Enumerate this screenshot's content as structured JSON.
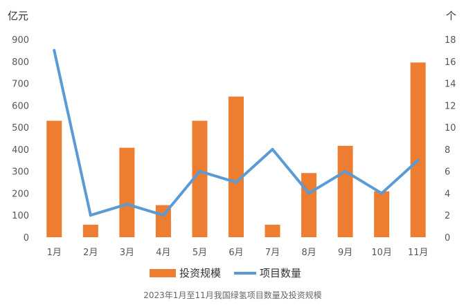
{
  "chart_data": {
    "type": "bar",
    "categories": [
      "1月",
      "2月",
      "3月",
      "4月",
      "5月",
      "6月",
      "7月",
      "8月",
      "9月",
      "10月",
      "11月"
    ],
    "series": [
      {
        "name": "投资规模",
        "kind": "bar",
        "axis": "left",
        "values": [
          530,
          57,
          407,
          146,
          530,
          640,
          57,
          292,
          416,
          209,
          795
        ],
        "color": "#ED7D31"
      },
      {
        "name": "项目数量",
        "kind": "line",
        "axis": "right",
        "values": [
          17,
          2,
          3,
          2,
          6,
          5,
          8,
          4,
          6,
          4,
          7
        ],
        "color": "#5B9BD5"
      }
    ],
    "y_left": {
      "label": "亿元",
      "ylim": [
        0,
        900
      ],
      "ticks": [
        "0",
        "100",
        "200",
        "300",
        "400",
        "500",
        "600",
        "700",
        "800",
        "900"
      ]
    },
    "y_right": {
      "label": "个",
      "ylim": [
        0,
        18
      ],
      "ticks": [
        "0",
        "2",
        "4",
        "6",
        "8",
        "10",
        "12",
        "14",
        "16",
        "18"
      ]
    },
    "legend_position": "bottom",
    "grid": false,
    "caption": "2023年1月至11月我国绿氢项目数量及投资规模"
  }
}
